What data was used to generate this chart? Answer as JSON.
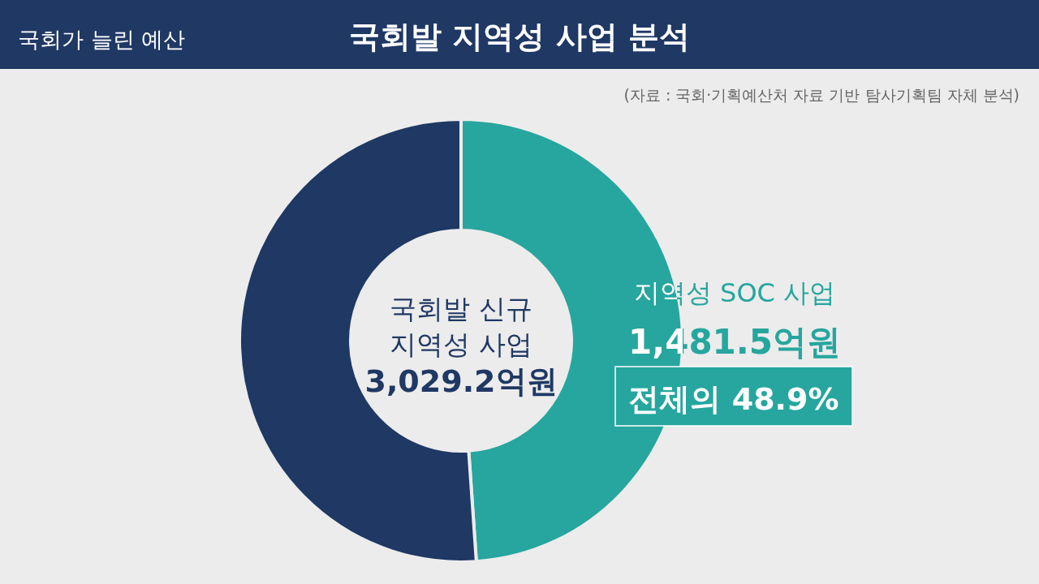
{
  "chart_data": {
    "type": "donut",
    "title": "국회발 지역성 사업 분석",
    "subtitle": "국회가 늘린 예산",
    "categories": [
      "지역성 SOC 사업",
      null
    ],
    "values": [
      48.9,
      51.1
    ],
    "colors": [
      "#26a69e",
      "#1f3864"
    ],
    "value_labels": [
      "전체의 48.9%",
      null
    ],
    "annotations": [
      "(자료 : 국회·기획예산처 자료 기반 탐사기획팀 자체 분석)",
      "국회발 신규\n지역성 사업",
      "3,029.2억원",
      "1,481.5억원"
    ],
    "legend": false
  }
}
